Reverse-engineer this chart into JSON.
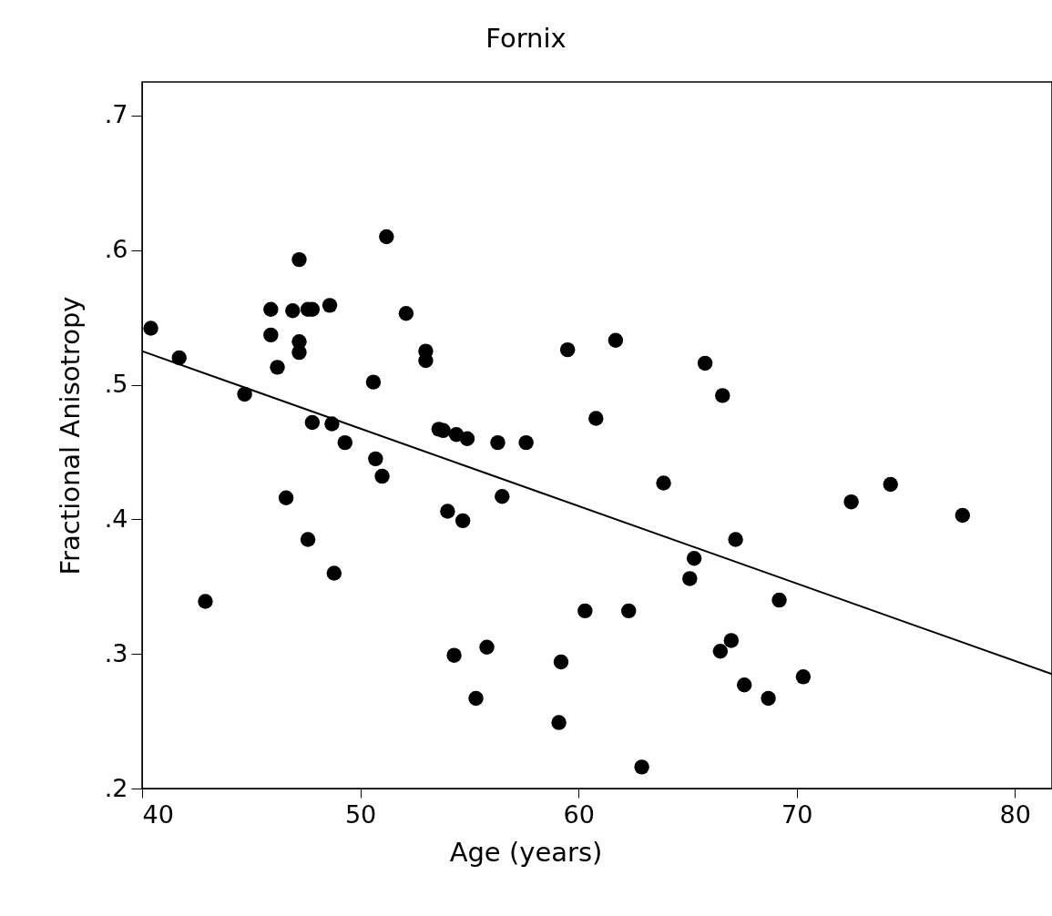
{
  "chart_data": {
    "type": "scatter",
    "title": "Fornix",
    "xlabel": "Age (years)",
    "ylabel": "Fractional Anisotropy",
    "xlim": [
      40,
      81.7
    ],
    "xticks": [
      40,
      50,
      60,
      70,
      80
    ],
    "ylim": [
      0.2,
      0.725
    ],
    "yticks": [
      {
        "value": 0.2,
        "label": ".2"
      },
      {
        "value": 0.3,
        "label": ".3"
      },
      {
        "value": 0.4,
        "label": ".4"
      },
      {
        "value": 0.5,
        "label": ".5"
      },
      {
        "value": 0.6,
        "label": ".6"
      },
      {
        "value": 0.7,
        "label": ".7"
      }
    ],
    "series": [
      {
        "marker": "circle",
        "color": "#000000",
        "x": [
          40.4,
          41.7,
          42.9,
          44.7,
          45.9,
          45.9,
          46.2,
          46.6,
          46.9,
          47.2,
          47.2,
          47.2,
          47.6,
          47.8,
          47.8,
          47.6,
          48.6,
          48.7,
          48.8,
          49.3,
          50.6,
          50.7,
          51.0,
          51.2,
          52.1,
          53.0,
          53.0,
          53.6,
          53.8,
          54.4,
          54.9,
          56.3,
          57.6,
          56.5,
          54.0,
          54.7,
          59.5,
          61.7,
          60.8,
          63.9,
          60.3,
          62.3,
          54.3,
          55.8,
          59.2,
          55.3,
          59.1,
          62.9,
          65.8,
          66.6,
          67.2,
          65.3,
          65.1,
          69.2,
          67.0,
          66.5,
          67.6,
          68.7,
          70.3,
          72.5,
          74.3,
          77.6
        ],
        "values": [
          0.542,
          0.52,
          0.339,
          0.493,
          0.556,
          0.537,
          0.513,
          0.416,
          0.555,
          0.593,
          0.532,
          0.524,
          0.556,
          0.556,
          0.472,
          0.385,
          0.559,
          0.471,
          0.36,
          0.457,
          0.502,
          0.445,
          0.432,
          0.61,
          0.553,
          0.525,
          0.518,
          0.467,
          0.466,
          0.463,
          0.46,
          0.457,
          0.457,
          0.417,
          0.406,
          0.399,
          0.526,
          0.533,
          0.475,
          0.427,
          0.332,
          0.332,
          0.299,
          0.305,
          0.294,
          0.267,
          0.249,
          0.216,
          0.516,
          0.492,
          0.385,
          0.371,
          0.356,
          0.34,
          0.31,
          0.302,
          0.277,
          0.267,
          0.283,
          0.413,
          0.426,
          0.403
        ]
      },
      {
        "type": "line",
        "color": "#000000",
        "x": [
          40,
          81.7
        ],
        "values": [
          0.525,
          0.285
        ]
      }
    ]
  }
}
